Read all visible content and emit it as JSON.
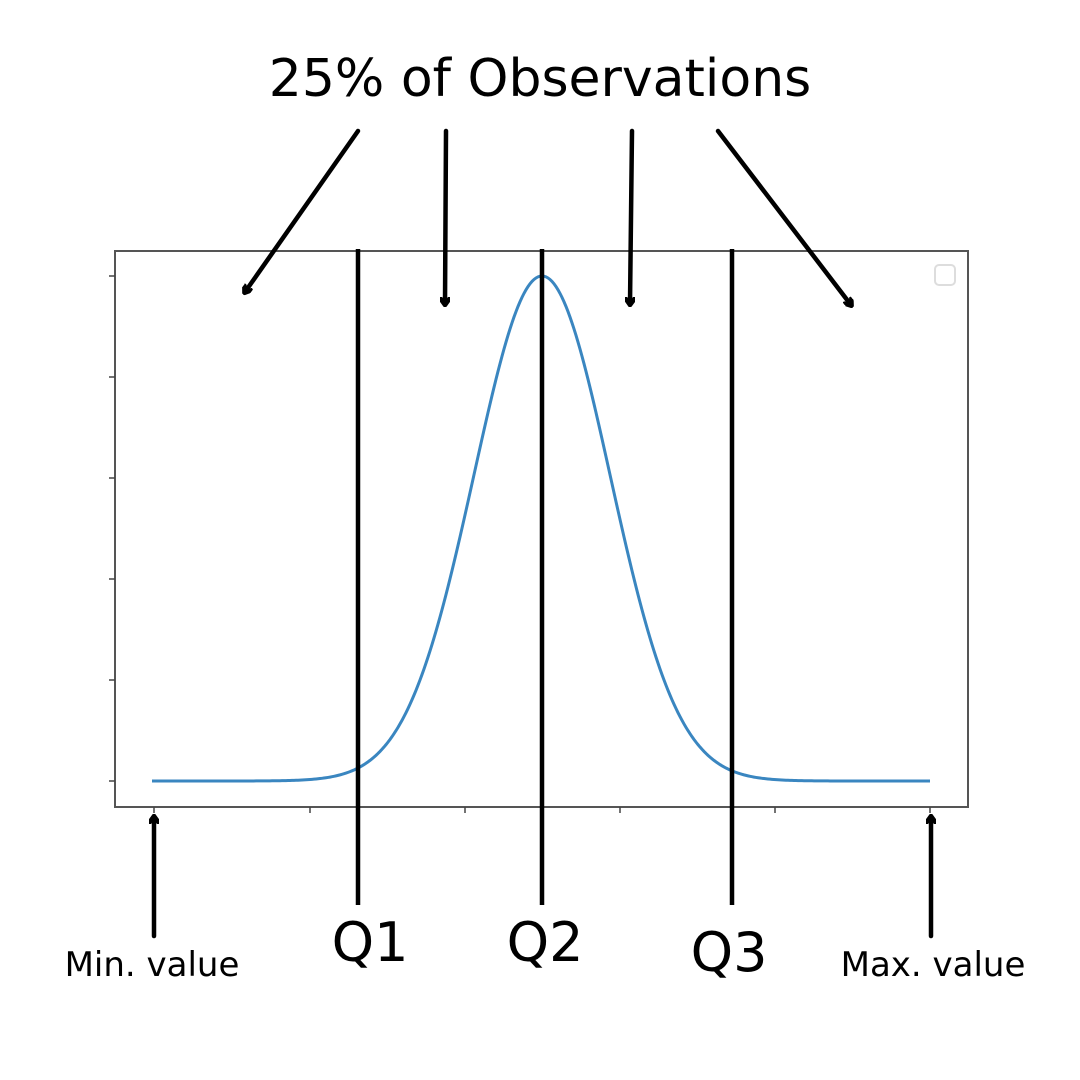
{
  "title": "25% of Observations",
  "quartiles": [
    {
      "label": "Q1"
    },
    {
      "label": "Q2"
    },
    {
      "label": "Q3"
    }
  ],
  "min_label": "Min. value",
  "max_label": "Max. value",
  "colors": {
    "curve": "#3a86c0",
    "frame": "#555555",
    "text": "#000000"
  },
  "chart_data": {
    "type": "line",
    "curve_shape": "normal-distribution",
    "title": "",
    "xlabel": "",
    "ylabel": "",
    "x_tick_labels": [],
    "y_tick_labels": [],
    "legend": "empty-box-top-right",
    "grid": false
  }
}
